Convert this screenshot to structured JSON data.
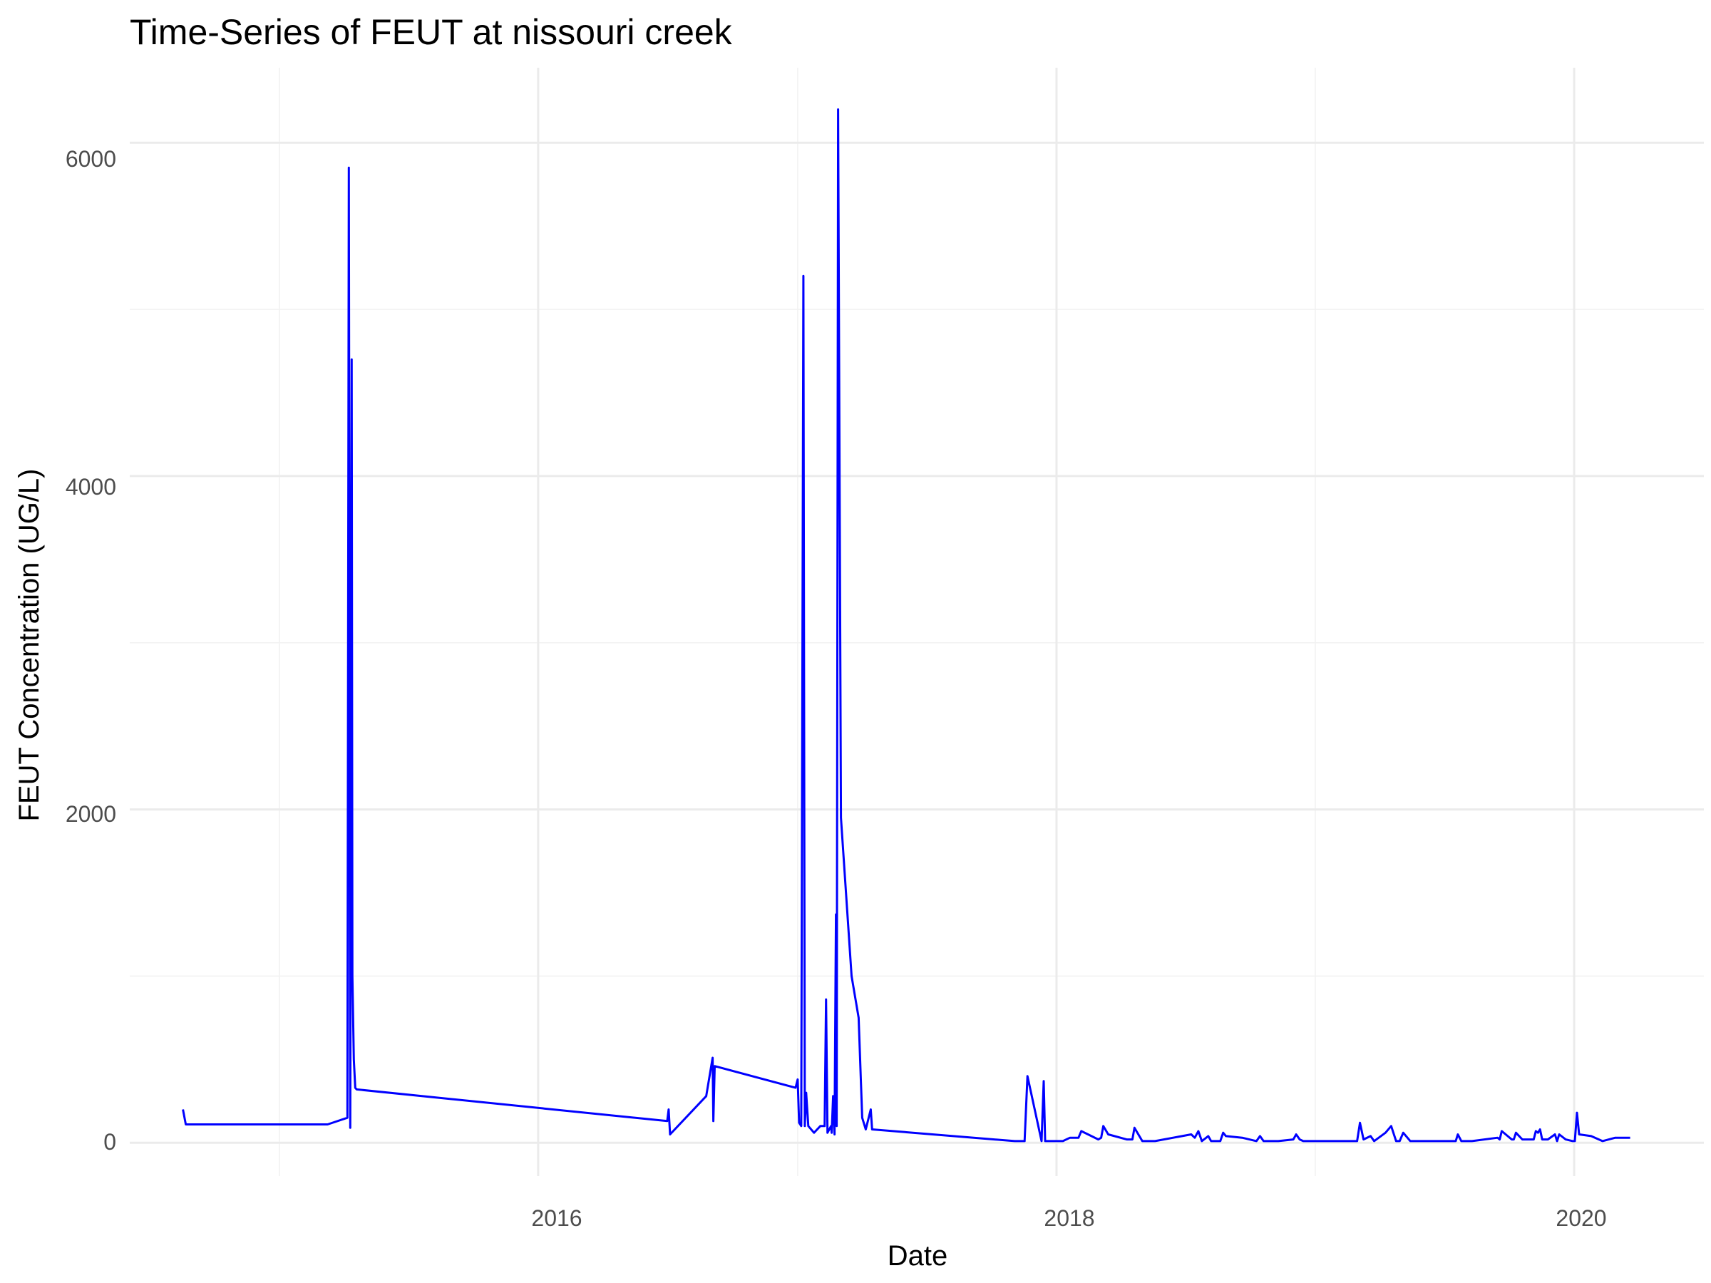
{
  "chart_data": {
    "type": "line",
    "title": "Time-Series of FEUT at nissouri creek",
    "xlabel": "Date",
    "ylabel": "FEUT Concentration (UG/L)",
    "x_tick_labels": [
      "2016",
      "2018",
      "2020"
    ],
    "y_tick_labels": [
      "0",
      "2000",
      "4000",
      "6000"
    ],
    "xlim": [
      "2014-06-04",
      "2020-07-02"
    ],
    "ylim": [
      -200,
      6450
    ],
    "grid": true,
    "legend": "none",
    "series": [
      {
        "color": "#0000ff",
        "x": [
          "2014-08-18",
          "2014-08-22",
          "2014-11-15",
          "2015-03-10",
          "2015-04-07",
          "2015-04-09",
          "2015-04-11",
          "2015-04-13",
          "2015-04-14",
          "2015-04-16",
          "2015-04-18",
          "2015-04-20",
          "2016-07-01",
          "2016-07-03",
          "2016-07-05",
          "2016-08-25",
          "2016-09-03",
          "2016-09-04",
          "2016-09-06",
          "2016-12-29",
          "2017-01-01",
          "2017-01-03",
          "2017-01-06",
          "2017-01-09",
          "2017-01-11",
          "2017-01-13",
          "2017-01-16",
          "2017-01-24",
          "2017-02-02",
          "2017-02-08",
          "2017-02-10",
          "2017-02-12",
          "2017-02-17",
          "2017-02-18",
          "2017-02-20",
          "2017-02-22",
          "2017-02-24",
          "2017-02-25",
          "2017-02-27",
          "2017-03-03",
          "2017-03-18",
          "2017-03-28",
          "2017-04-02",
          "2017-04-07",
          "2017-04-14",
          "2017-04-16",
          "2017-11-03",
          "2017-11-17",
          "2017-11-21",
          "2017-12-11",
          "2017-12-14",
          "2017-12-16",
          "2018-01-10",
          "2018-01-20",
          "2018-02-01",
          "2018-02-05",
          "2018-03-01",
          "2018-03-05",
          "2018-03-08",
          "2018-03-15",
          "2018-04-10",
          "2018-04-18",
          "2018-04-21",
          "2018-05-02",
          "2018-05-05",
          "2018-05-20",
          "2018-07-10",
          "2018-07-15",
          "2018-07-20",
          "2018-07-25",
          "2018-08-03",
          "2018-08-07",
          "2018-08-20",
          "2018-08-24",
          "2018-08-28",
          "2018-09-20",
          "2018-10-10",
          "2018-10-15",
          "2018-10-20",
          "2018-11-10",
          "2018-12-01",
          "2018-12-05",
          "2018-12-10",
          "2018-12-15",
          "2019-01-20",
          "2019-03-01",
          "2019-03-05",
          "2019-03-10",
          "2019-03-20",
          "2019-03-25",
          "2019-04-10",
          "2019-04-18",
          "2019-04-25",
          "2019-04-30",
          "2019-05-05",
          "2019-05-15",
          "2019-05-20",
          "2019-05-25",
          "2019-07-15",
          "2019-07-18",
          "2019-07-21",
          "2019-07-26",
          "2019-08-10",
          "2019-09-15",
          "2019-09-18",
          "2019-09-21",
          "2019-10-05",
          "2019-10-08",
          "2019-10-11",
          "2019-10-20",
          "2019-10-30",
          "2019-11-05",
          "2019-11-08",
          "2019-11-11",
          "2019-11-14",
          "2019-11-17",
          "2019-11-25",
          "2019-12-05",
          "2019-12-08",
          "2019-12-11",
          "2019-12-20",
          "2019-12-30",
          "2020-01-02",
          "2020-01-05",
          "2020-01-08",
          "2020-01-25",
          "2020-02-10",
          "2020-02-28",
          "2020-03-15",
          "2020-03-20"
        ],
        "y": [
          200,
          110,
          110,
          110,
          150,
          5850,
          90,
          4700,
          1000,
          500,
          330,
          320,
          130,
          200,
          50,
          280,
          510,
          130,
          460,
          330,
          380,
          120,
          100,
          5200,
          100,
          300,
          100,
          60,
          100,
          100,
          860,
          60,
          100,
          60,
          280,
          50,
          1370,
          100,
          6200,
          1950,
          1000,
          750,
          150,
          80,
          200,
          80,
          10,
          10,
          400,
          10,
          370,
          10,
          10,
          30,
          30,
          70,
          20,
          30,
          100,
          50,
          20,
          20,
          90,
          10,
          10,
          10,
          50,
          30,
          70,
          10,
          40,
          10,
          10,
          60,
          40,
          30,
          10,
          40,
          10,
          10,
          20,
          50,
          20,
          10,
          10,
          10,
          120,
          20,
          40,
          10,
          60,
          100,
          10,
          10,
          60,
          10,
          10,
          10,
          10,
          10,
          50,
          10,
          10,
          30,
          20,
          70,
          20,
          20,
          60,
          20,
          20,
          20,
          70,
          60,
          80,
          20,
          20,
          50,
          10,
          50,
          20,
          10,
          10,
          180,
          50,
          40,
          10,
          30,
          30,
          30
        ]
      }
    ]
  }
}
